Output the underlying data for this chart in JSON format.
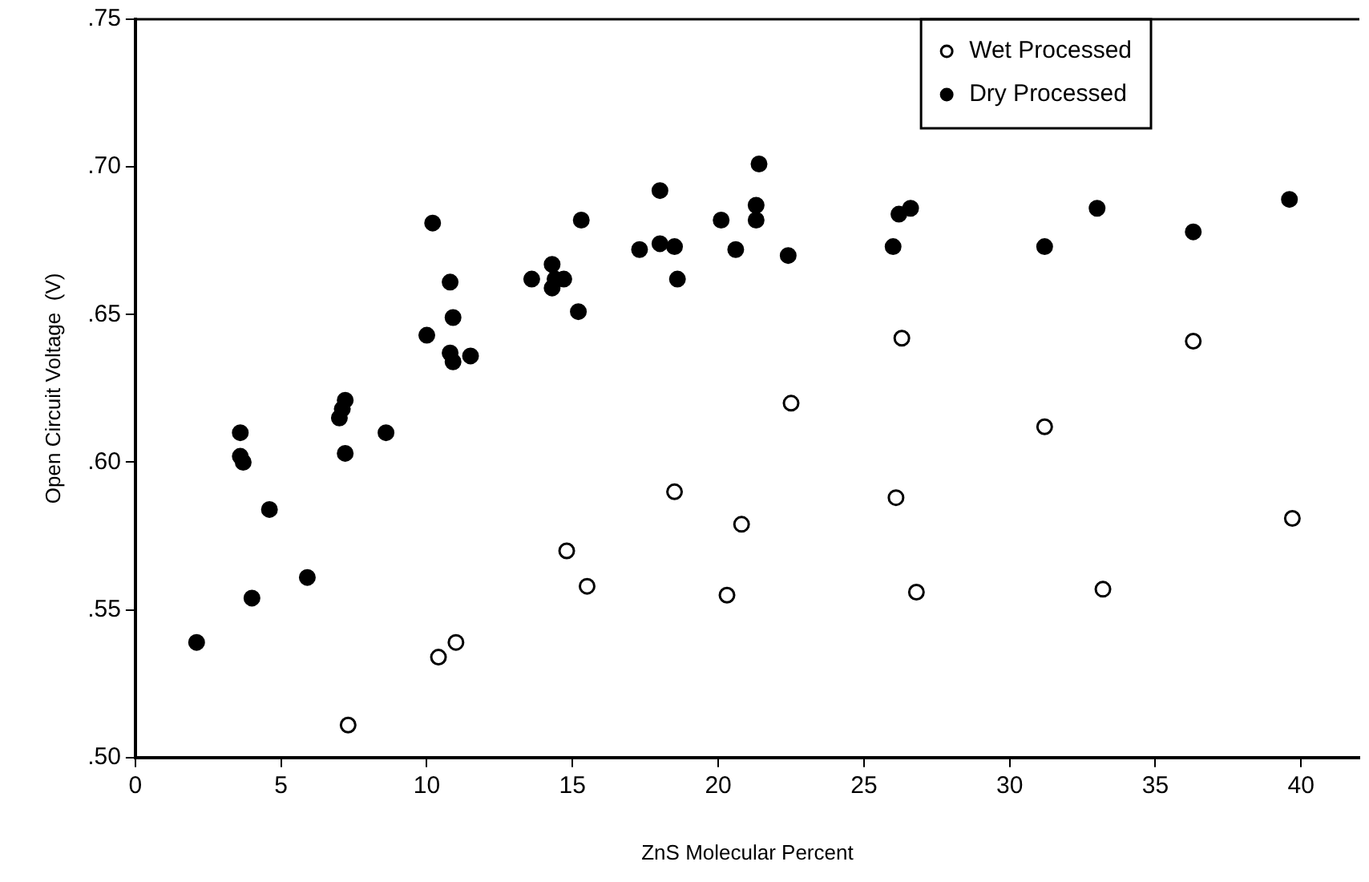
{
  "chart_data": {
    "type": "scatter",
    "xlabel": "ZnS Molecular Percent",
    "ylabel": "Open Circuit Voltage  (V)",
    "xlim": [
      0,
      42
    ],
    "ylim": [
      0.5,
      0.75
    ],
    "xticks": [
      0,
      5,
      10,
      15,
      20,
      25,
      30,
      35,
      40
    ],
    "yticks": [
      {
        "value": 0.5,
        "label": ".50"
      },
      {
        "value": 0.55,
        "label": ".55"
      },
      {
        "value": 0.6,
        "label": ".60"
      },
      {
        "value": 0.65,
        "label": ".65"
      },
      {
        "value": 0.7,
        "label": ".70"
      },
      {
        "value": 0.75,
        "label": ".75"
      }
    ],
    "grid": false,
    "legend": "top right",
    "marker": "circle",
    "series": [
      {
        "name": "Wet Processed",
        "color": "#000000",
        "x": [
          7.3,
          10.4,
          11.0,
          14.8,
          15.5,
          18.5,
          20.3,
          20.8,
          22.5,
          26.1,
          26.3,
          26.8,
          31.2,
          33.2,
          36.3,
          39.7
        ],
        "values": [
          0.511,
          0.534,
          0.539,
          0.57,
          0.558,
          0.59,
          0.555,
          0.579,
          0.62,
          0.588,
          0.642,
          0.556,
          0.612,
          0.557,
          0.641,
          0.581
        ]
      },
      {
        "name": "Dry Processed",
        "color": "#000000",
        "x": [
          2.1,
          3.6,
          3.6,
          3.7,
          4.0,
          4.6,
          5.9,
          7.0,
          7.1,
          7.2,
          7.2,
          8.6,
          10.0,
          10.2,
          10.8,
          10.9,
          10.8,
          10.9,
          11.5,
          13.6,
          14.3,
          14.3,
          14.4,
          14.7,
          15.2,
          15.3,
          17.3,
          18.0,
          18.0,
          18.5,
          18.6,
          20.1,
          20.6,
          21.3,
          21.3,
          21.4,
          22.4,
          26.0,
          26.2,
          26.6,
          31.2,
          33.0,
          36.3,
          39.6
        ],
        "values": [
          0.539,
          0.61,
          0.602,
          0.6,
          0.554,
          0.584,
          0.561,
          0.615,
          0.618,
          0.621,
          0.603,
          0.61,
          0.643,
          0.681,
          0.661,
          0.649,
          0.637,
          0.634,
          0.636,
          0.662,
          0.667,
          0.659,
          0.662,
          0.662,
          0.651,
          0.682,
          0.672,
          0.692,
          0.674,
          0.673,
          0.662,
          0.682,
          0.672,
          0.682,
          0.687,
          0.701,
          0.67,
          0.673,
          0.684,
          0.686,
          0.673,
          0.686,
          0.678,
          0.689
        ]
      }
    ]
  }
}
